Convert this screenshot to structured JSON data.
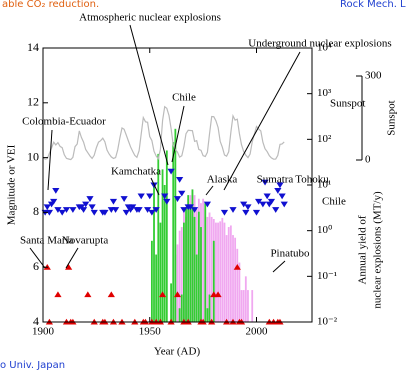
{
  "captions": {
    "top_left": "able CO₂ reduction.",
    "top_right": "Rock Mech. La",
    "bottom_left": "o Univ. Japan"
  },
  "chart_data": {
    "type": "scatter",
    "xlabel": "Year (AD)",
    "ylabel": "Magnitude or VEI",
    "y2label": [
      "Annual yield of",
      "nuclear explosions (MT/y)"
    ],
    "y3label": "Sunspot",
    "xlim": [
      1900,
      2026
    ],
    "xticks": [
      1900,
      1950,
      2000
    ],
    "ylim": [
      4,
      14
    ],
    "yticks": [
      4,
      6,
      8,
      10,
      12,
      14
    ],
    "y2lim": [
      0.01,
      10000
    ],
    "y2scale": "log",
    "y2ticks": [
      {
        "value": 0.01,
        "label": "10⁻²"
      },
      {
        "value": 0.1,
        "label": "10⁻¹"
      },
      {
        "value": 1,
        "label": "10⁰"
      },
      {
        "value": 10,
        "label": "10¹"
      },
      {
        "value": 100,
        "label": "10²"
      },
      {
        "value": 1000,
        "label": "10³"
      },
      {
        "value": 10000,
        "label": "10⁴"
      }
    ],
    "y3lim": [
      0,
      300
    ],
    "y3ticks": [
      0,
      300
    ],
    "series": [
      {
        "type": "bar",
        "axis": "y2",
        "color": "#f0a8f0",
        "x": [
          1961,
          1962,
          1963,
          1964,
          1965,
          1966,
          1967,
          1968,
          1969,
          1970,
          1971,
          1972,
          1973,
          1974,
          1975,
          1976,
          1977,
          1978,
          1979,
          1980,
          1981,
          1982,
          1983,
          1984,
          1985,
          1986,
          1987,
          1988,
          1989,
          1990,
          1991,
          1992,
          1993,
          1994,
          1995,
          1996,
          1998
        ],
        "values": [
          0.05,
          0.3,
          0.5,
          1,
          1.2,
          3,
          2,
          5,
          6,
          8,
          6,
          3,
          5,
          4,
          5,
          3,
          2,
          2.5,
          2,
          1.8,
          1.5,
          1.5,
          1.6,
          1.9,
          1.5,
          0.8,
          1.2,
          1.3,
          0.8,
          0.7,
          0.4,
          0.2,
          0.05,
          0.05,
          0.1,
          0.05,
          0.05
        ]
      },
      {
        "type": "bar",
        "axis": "y2",
        "color": "#33cc33",
        "x": [
          1951,
          1952,
          1953,
          1954,
          1955,
          1956,
          1957,
          1958,
          1960,
          1961,
          1962,
          1964,
          1965,
          1966,
          1967,
          1968,
          1969,
          1970,
          1971,
          1972,
          1973,
          1974,
          1976,
          1977,
          1978,
          1980
        ],
        "values": [
          0.6,
          11,
          0.3,
          48,
          1.5,
          22,
          10,
          57,
          0.07,
          87,
          170,
          0.02,
          0.04,
          1.5,
          3.3,
          6,
          3,
          8,
          2,
          0.3,
          2.6,
          1.2,
          4,
          0.02,
          0.04,
          0.6
        ]
      },
      {
        "type": "line",
        "axis": "y3",
        "color": "#bbbbbb",
        "x": [
          1900,
          1901,
          1902,
          1903,
          1904,
          1905,
          1906,
          1907,
          1908,
          1909,
          1910,
          1911,
          1912,
          1913,
          1914,
          1915,
          1916,
          1917,
          1918,
          1919,
          1920,
          1921,
          1922,
          1923,
          1924,
          1925,
          1926,
          1927,
          1928,
          1929,
          1930,
          1931,
          1932,
          1933,
          1934,
          1935,
          1936,
          1937,
          1938,
          1939,
          1940,
          1941,
          1942,
          1943,
          1944,
          1945,
          1946,
          1947,
          1948,
          1949,
          1950,
          1951,
          1952,
          1953,
          1954,
          1955,
          1956,
          1957,
          1958,
          1959,
          1960,
          1961,
          1962,
          1963,
          1964,
          1965,
          1966,
          1967,
          1968,
          1969,
          1970,
          1971,
          1972,
          1973,
          1974,
          1975,
          1976,
          1977,
          1978,
          1979,
          1980,
          1981,
          1982,
          1983,
          1984,
          1985,
          1986,
          1987,
          1988,
          1989,
          1990,
          1991,
          1992,
          1993,
          1994,
          1995,
          1996,
          1997,
          1998,
          1999,
          2000,
          2001,
          2002,
          2003,
          2004,
          2005,
          2006,
          2007,
          2008,
          2009,
          2010,
          2011,
          2012,
          2013
        ],
        "values": [
          9.5,
          2.7,
          5,
          24.4,
          42,
          63.5,
          53.8,
          62,
          48.5,
          43.9,
          18.6,
          5.7,
          3.6,
          1.4,
          9.6,
          47.4,
          57.1,
          103.9,
          80.6,
          63.6,
          37.6,
          26.1,
          14.2,
          5.8,
          16.7,
          44.3,
          63.9,
          69,
          77.8,
          64.9,
          35.7,
          21.2,
          11.1,
          5.7,
          8.7,
          36.1,
          79.7,
          114.4,
          109.6,
          88.8,
          67.8,
          47.5,
          30.6,
          16.3,
          9.6,
          33.2,
          92.6,
          151.6,
          136.3,
          134.7,
          83.9,
          69.4,
          31.5,
          13.9,
          4.4,
          38,
          141.7,
          190.2,
          184.8,
          159,
          112.3,
          53.9,
          37.6,
          27.9,
          10.2,
          15.1,
          47,
          93.8,
          105.9,
          105.5,
          104.5,
          66.6,
          68.9,
          38,
          34.5,
          15.5,
          12.6,
          27.5,
          92.5,
          155.4,
          154.6,
          140.4,
          115.9,
          66.6,
          45.9,
          17.9,
          13.4,
          29.4,
          100.2,
          157.6,
          142.6,
          145.7,
          94.3,
          54.6,
          29.9,
          17.5,
          8.6,
          21.5,
          64.3,
          93.3,
          119.6,
          111,
          104,
          63.7,
          40.4,
          29.8,
          15.2,
          7.5,
          2.9,
          3.1,
          16.5,
          55.7,
          57.6,
          64.7
        ]
      },
      {
        "type": "scatter",
        "axis": "y",
        "color": "#1010d0",
        "marker": "down",
        "x": [
          1901,
          1902,
          1903,
          1904,
          1905,
          1906,
          1907,
          1909,
          1911,
          1914,
          1917,
          1918,
          1919,
          1920,
          1922,
          1923,
          1924,
          1928,
          1929,
          1932,
          1933,
          1934,
          1938,
          1939,
          1940,
          1941,
          1942,
          1944,
          1945,
          1946,
          1949,
          1950,
          1951,
          1952,
          1953,
          1957,
          1958,
          1960,
          1963,
          1964,
          1965,
          1966,
          1968,
          1969,
          1971,
          1977,
          1985,
          1989,
          1994,
          1995,
          1996,
          2000,
          2001,
          2003,
          2004,
          2005,
          2006,
          2007,
          2009,
          2010,
          2011,
          2012,
          2013
        ],
        "values": [
          8.0,
          8.2,
          8.0,
          8.3,
          8.4,
          8.8,
          8.1,
          8.0,
          8.1,
          8.1,
          8.2,
          8.2,
          8.1,
          8.3,
          8.5,
          8.2,
          8.0,
          8.0,
          8.0,
          8.1,
          8.4,
          8.1,
          8.5,
          8.0,
          8.2,
          8.1,
          8.2,
          8.1,
          8.1,
          8.6,
          8.1,
          8.6,
          8.0,
          9.0,
          8.1,
          8.6,
          8.4,
          9.5,
          8.5,
          9.2,
          8.7,
          8.1,
          8.2,
          8.2,
          8.1,
          8.3,
          8.0,
          8.1,
          8.3,
          8.0,
          8.2,
          8.0,
          8.4,
          8.3,
          9.1,
          8.6,
          8.3,
          8.4,
          8.1,
          8.8,
          9.0,
          8.6,
          8.3
        ]
      },
      {
        "type": "scatter",
        "axis": "y",
        "color": "#e00000",
        "marker": "up",
        "x": [
          1902,
          1903,
          1907,
          1911,
          1912,
          1913,
          1914,
          1921,
          1924,
          1928,
          1929,
          1932,
          1933,
          1937,
          1943,
          1947,
          1948,
          1951,
          1953,
          1955,
          1956,
          1960,
          1963,
          1966,
          1968,
          1974,
          1975,
          1979,
          1980,
          1982,
          1986,
          1989,
          1991,
          1992,
          1993,
          2006,
          2008,
          2010,
          2011
        ],
        "values": [
          6,
          4,
          5,
          4,
          6,
          4,
          4,
          5,
          4,
          4,
          4,
          5,
          4,
          4,
          4,
          4,
          4,
          4,
          4,
          4,
          5,
          4,
          5,
          4,
          4,
          4,
          4,
          4,
          5,
          5,
          4,
          4,
          6,
          4,
          4,
          4,
          4,
          4,
          4
        ]
      }
    ],
    "annotations": [
      "Atmospheric nuclear explosions",
      "Underground nuclear explosions",
      "Chile",
      "Sunspot",
      "Colombia-Ecuador",
      "Kamchatka",
      "Alaska",
      "Sumatra",
      "Tohoku",
      "Chile",
      "Santa Maria",
      "Novarupta",
      "Pinatubo"
    ]
  }
}
